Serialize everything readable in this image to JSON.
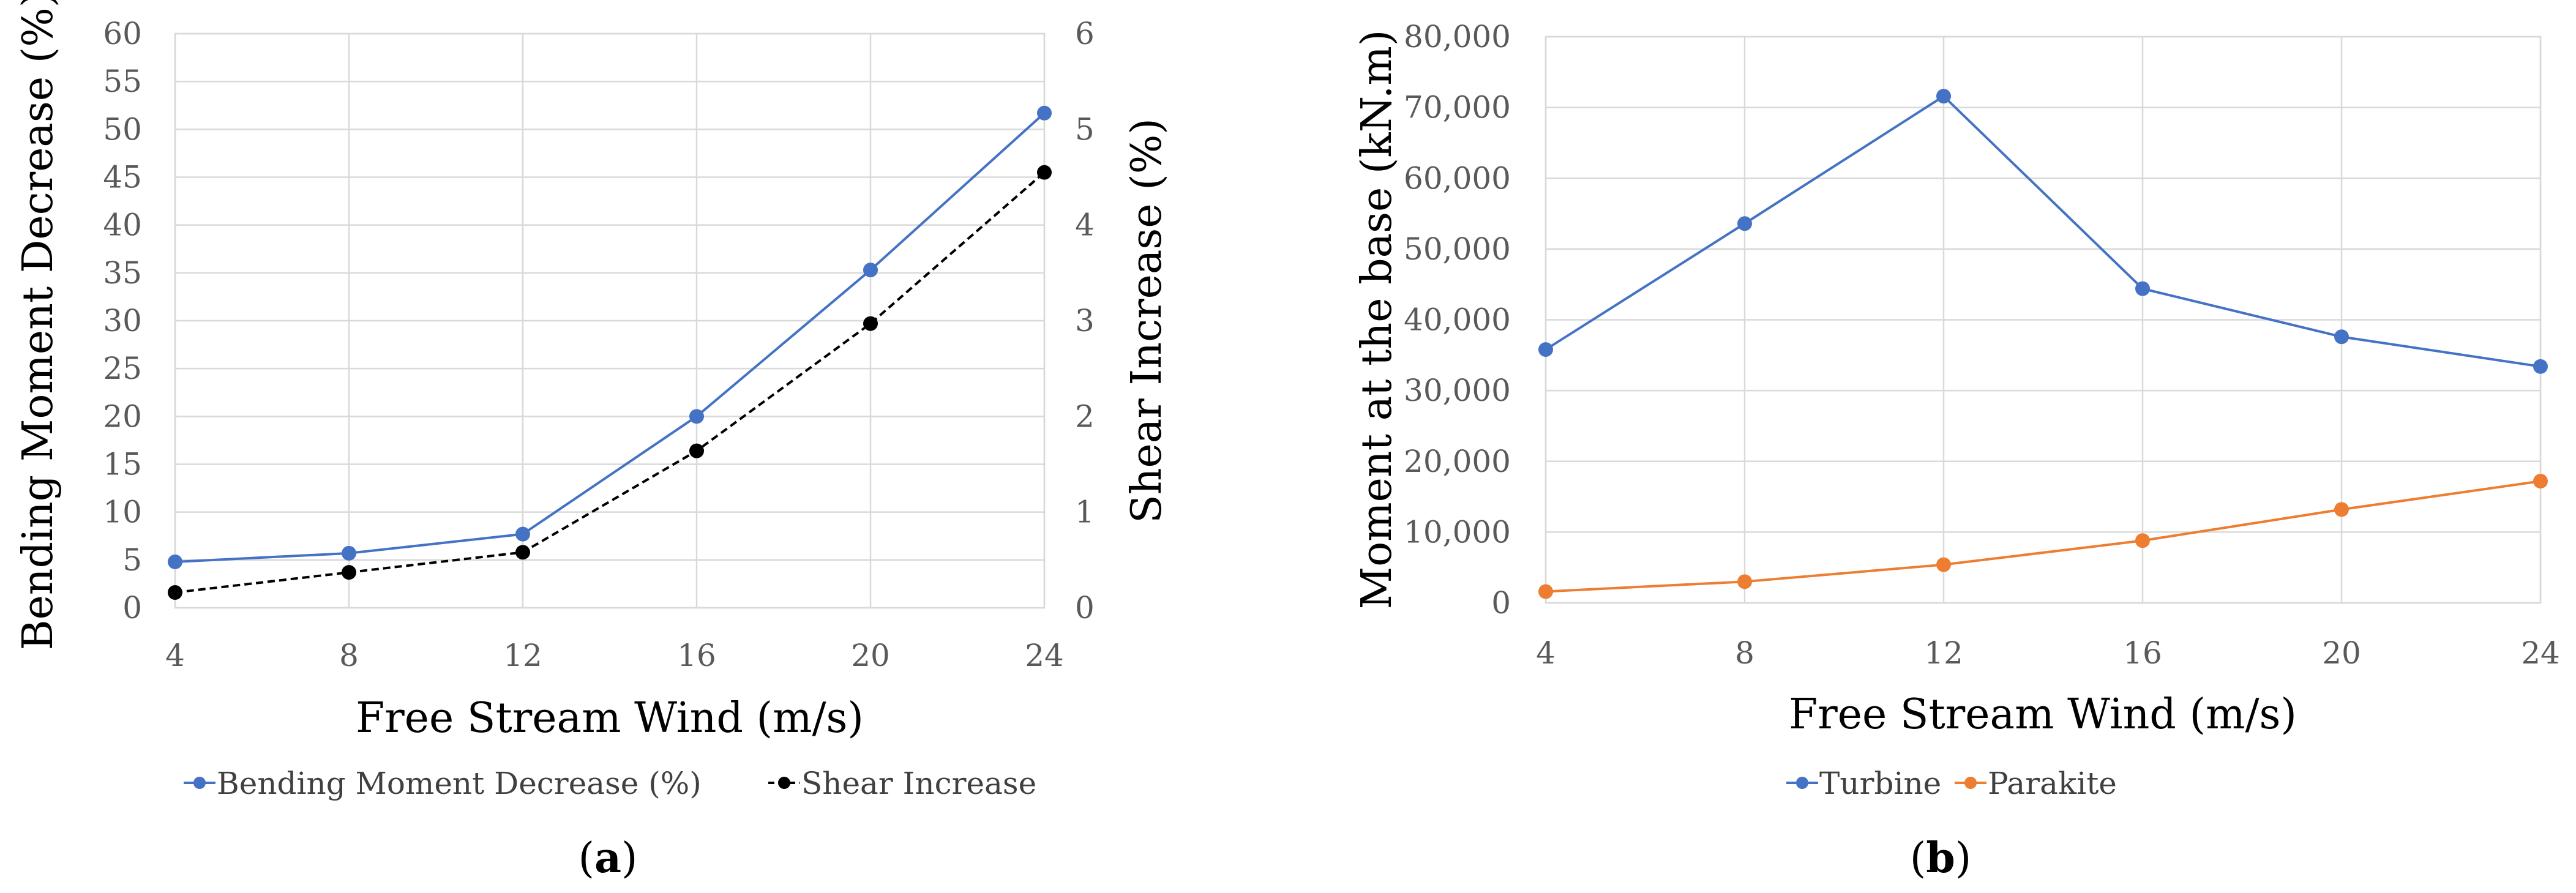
{
  "chart_data": [
    {
      "type": "line",
      "panel_label": "a",
      "x": [
        4,
        8,
        12,
        16,
        20,
        24
      ],
      "xlabel": "Free Stream Wind (m/s)",
      "xticks": [
        "4",
        "8",
        "12",
        "16",
        "20",
        "24"
      ],
      "ylabel": "Bending Moment Decrease (%)",
      "ylim": [
        0,
        60
      ],
      "yticks": [
        "0",
        "5",
        "10",
        "15",
        "20",
        "25",
        "30",
        "35",
        "40",
        "45",
        "50",
        "55",
        "60"
      ],
      "y2label": "Shear Increase (%)",
      "y2lim": [
        0,
        6
      ],
      "y2ticks": [
        "0",
        "1",
        "2",
        "3",
        "4",
        "5",
        "6"
      ],
      "grid": true,
      "legend_position": "bottom",
      "series": [
        {
          "name": "Bending Moment Decrease (%)",
          "axis": "left",
          "color": "#4472c4",
          "dashed": false,
          "values": [
            4.8,
            5.7,
            7.7,
            20.0,
            35.3,
            51.7
          ]
        },
        {
          "name": "Shear Increase",
          "axis": "right",
          "color": "#000000",
          "dashed": true,
          "values": [
            0.16,
            0.37,
            0.58,
            1.64,
            2.97,
            4.55
          ]
        }
      ]
    },
    {
      "type": "line",
      "panel_label": "b",
      "x": [
        4,
        8,
        12,
        16,
        20,
        24
      ],
      "xlabel": "Free Stream Wind (m/s)",
      "xticks": [
        "4",
        "8",
        "12",
        "16",
        "20",
        "24"
      ],
      "ylabel": "Moment at the base (kN.m)",
      "ylim": [
        0,
        80000
      ],
      "yticks": [
        "0",
        "10,000",
        "20,000",
        "30,000",
        "40,000",
        "50,000",
        "60,000",
        "70,000",
        "80,000"
      ],
      "grid": true,
      "legend_position": "bottom",
      "series": [
        {
          "name": "Turbine",
          "axis": "left",
          "color": "#4472c4",
          "dashed": false,
          "values": [
            35800,
            53600,
            71600,
            44400,
            37600,
            33400
          ]
        },
        {
          "name": "Parakite",
          "axis": "left",
          "color": "#ed7d31",
          "dashed": false,
          "values": [
            1600,
            3000,
            5400,
            8800,
            13200,
            17200
          ]
        }
      ]
    }
  ]
}
